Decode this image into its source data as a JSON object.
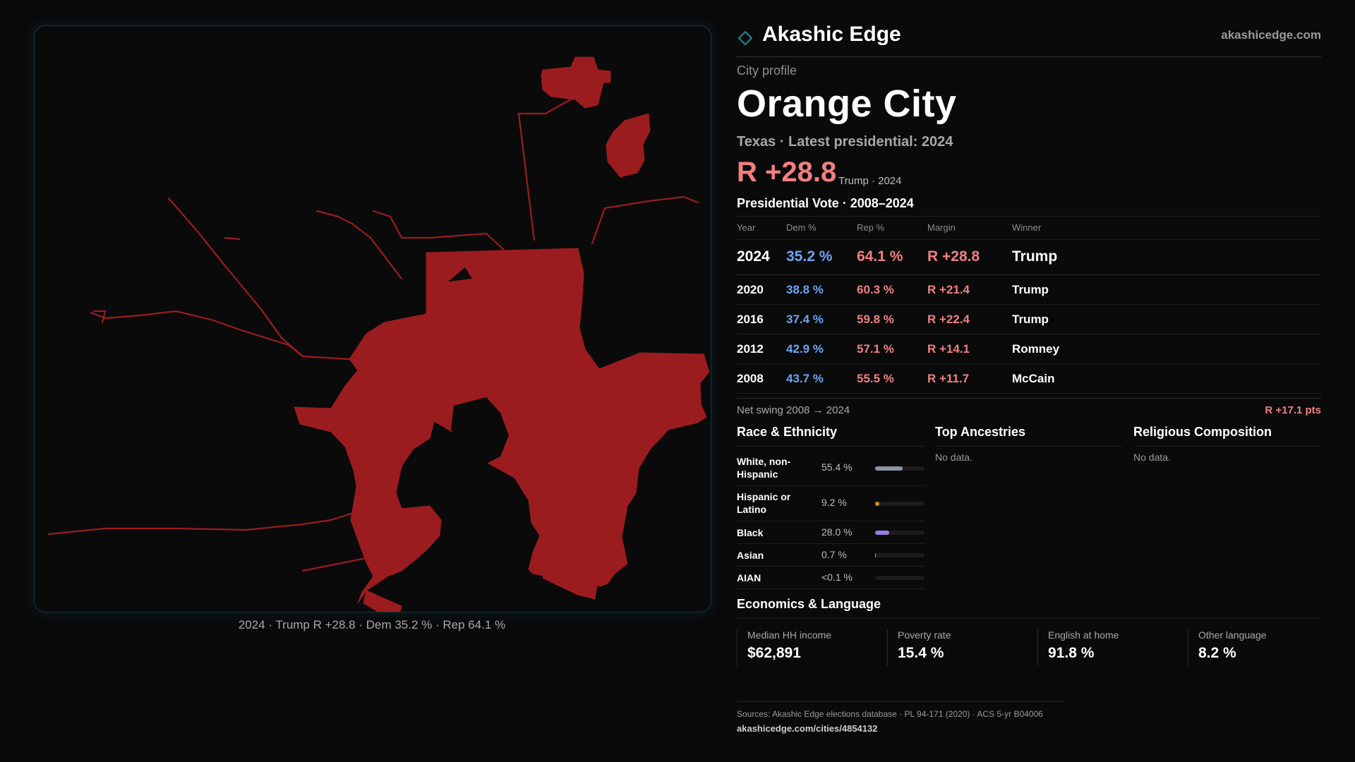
{
  "brand": {
    "name": "Akashic Edge",
    "url": "akashicedge.com",
    "accent": "#1e8a92"
  },
  "header": {
    "kicker": "City profile",
    "city": "Orange City",
    "subtitle": "Texas · Latest presidential: 2024",
    "margin": "R +28.8",
    "margin_note": "Trump · 2024"
  },
  "votes": {
    "title": "Presidential Vote · 2008–2024",
    "columns": [
      "Year",
      "Dem %",
      "Rep %",
      "Margin",
      "Winner"
    ],
    "rows": [
      {
        "year": "2024",
        "dem": "35.2 %",
        "rep": "64.1 %",
        "margin": "R +28.8",
        "winner": "Trump"
      },
      {
        "year": "2020",
        "dem": "38.8 %",
        "rep": "60.3 %",
        "margin": "R +21.4",
        "winner": "Trump"
      },
      {
        "year": "2016",
        "dem": "37.4 %",
        "rep": "59.8 %",
        "margin": "R +22.4",
        "winner": "Trump"
      },
      {
        "year": "2012",
        "dem": "42.9 %",
        "rep": "57.1 %",
        "margin": "R +14.1",
        "winner": "Romney"
      },
      {
        "year": "2008",
        "dem": "43.7 %",
        "rep": "55.5 %",
        "margin": "R +11.7",
        "winner": "McCain"
      }
    ],
    "swing_label": "Net swing 2008 → 2024",
    "swing_value": "R +17.1 pts"
  },
  "colors": {
    "dem": "#6fa4f0",
    "rep": "#f08080",
    "map_fill": "#9b1c1f"
  },
  "race": {
    "title": "Race & Ethnicity",
    "rows": [
      {
        "label": "White, non-Hispanic",
        "value": "55.4 %",
        "share": 0.554,
        "color": "#8b95a7"
      },
      {
        "label": "Hispanic or Latino",
        "value": "9.2 %",
        "share": 0.092,
        "color": "#d98a1a"
      },
      {
        "label": "Black",
        "value": "28.0 %",
        "share": 0.28,
        "color": "#9b7ee0"
      },
      {
        "label": "Asian",
        "value": "0.7 %",
        "share": 0.007,
        "color": "#8b95a7"
      },
      {
        "label": "AIAN",
        "value": "<0.1 %",
        "share": 0.0,
        "color": "#8b95a7"
      }
    ]
  },
  "ancestries": {
    "title": "Top Ancestries",
    "empty": "No data."
  },
  "religion": {
    "title": "Religious Composition",
    "empty": "No data."
  },
  "economics": {
    "title": "Economics & Language",
    "cards": [
      {
        "label": "Median HH income",
        "value": "$62,891"
      },
      {
        "label": "Poverty rate",
        "value": "15.4 %"
      },
      {
        "label": "English at home",
        "value": "91.8 %"
      },
      {
        "label": "Other language",
        "value": "8.2 %"
      }
    ]
  },
  "map": {
    "caption": "2024 · Trump R +28.8 · Dem 35.2 % · Rep 64.1 %"
  },
  "sources": {
    "text": "Sources: Akashic Edge elections database · PL 94-171 (2020) · ACS 5-yr B04006",
    "url": "akashicedge.com/cities/4854132"
  }
}
